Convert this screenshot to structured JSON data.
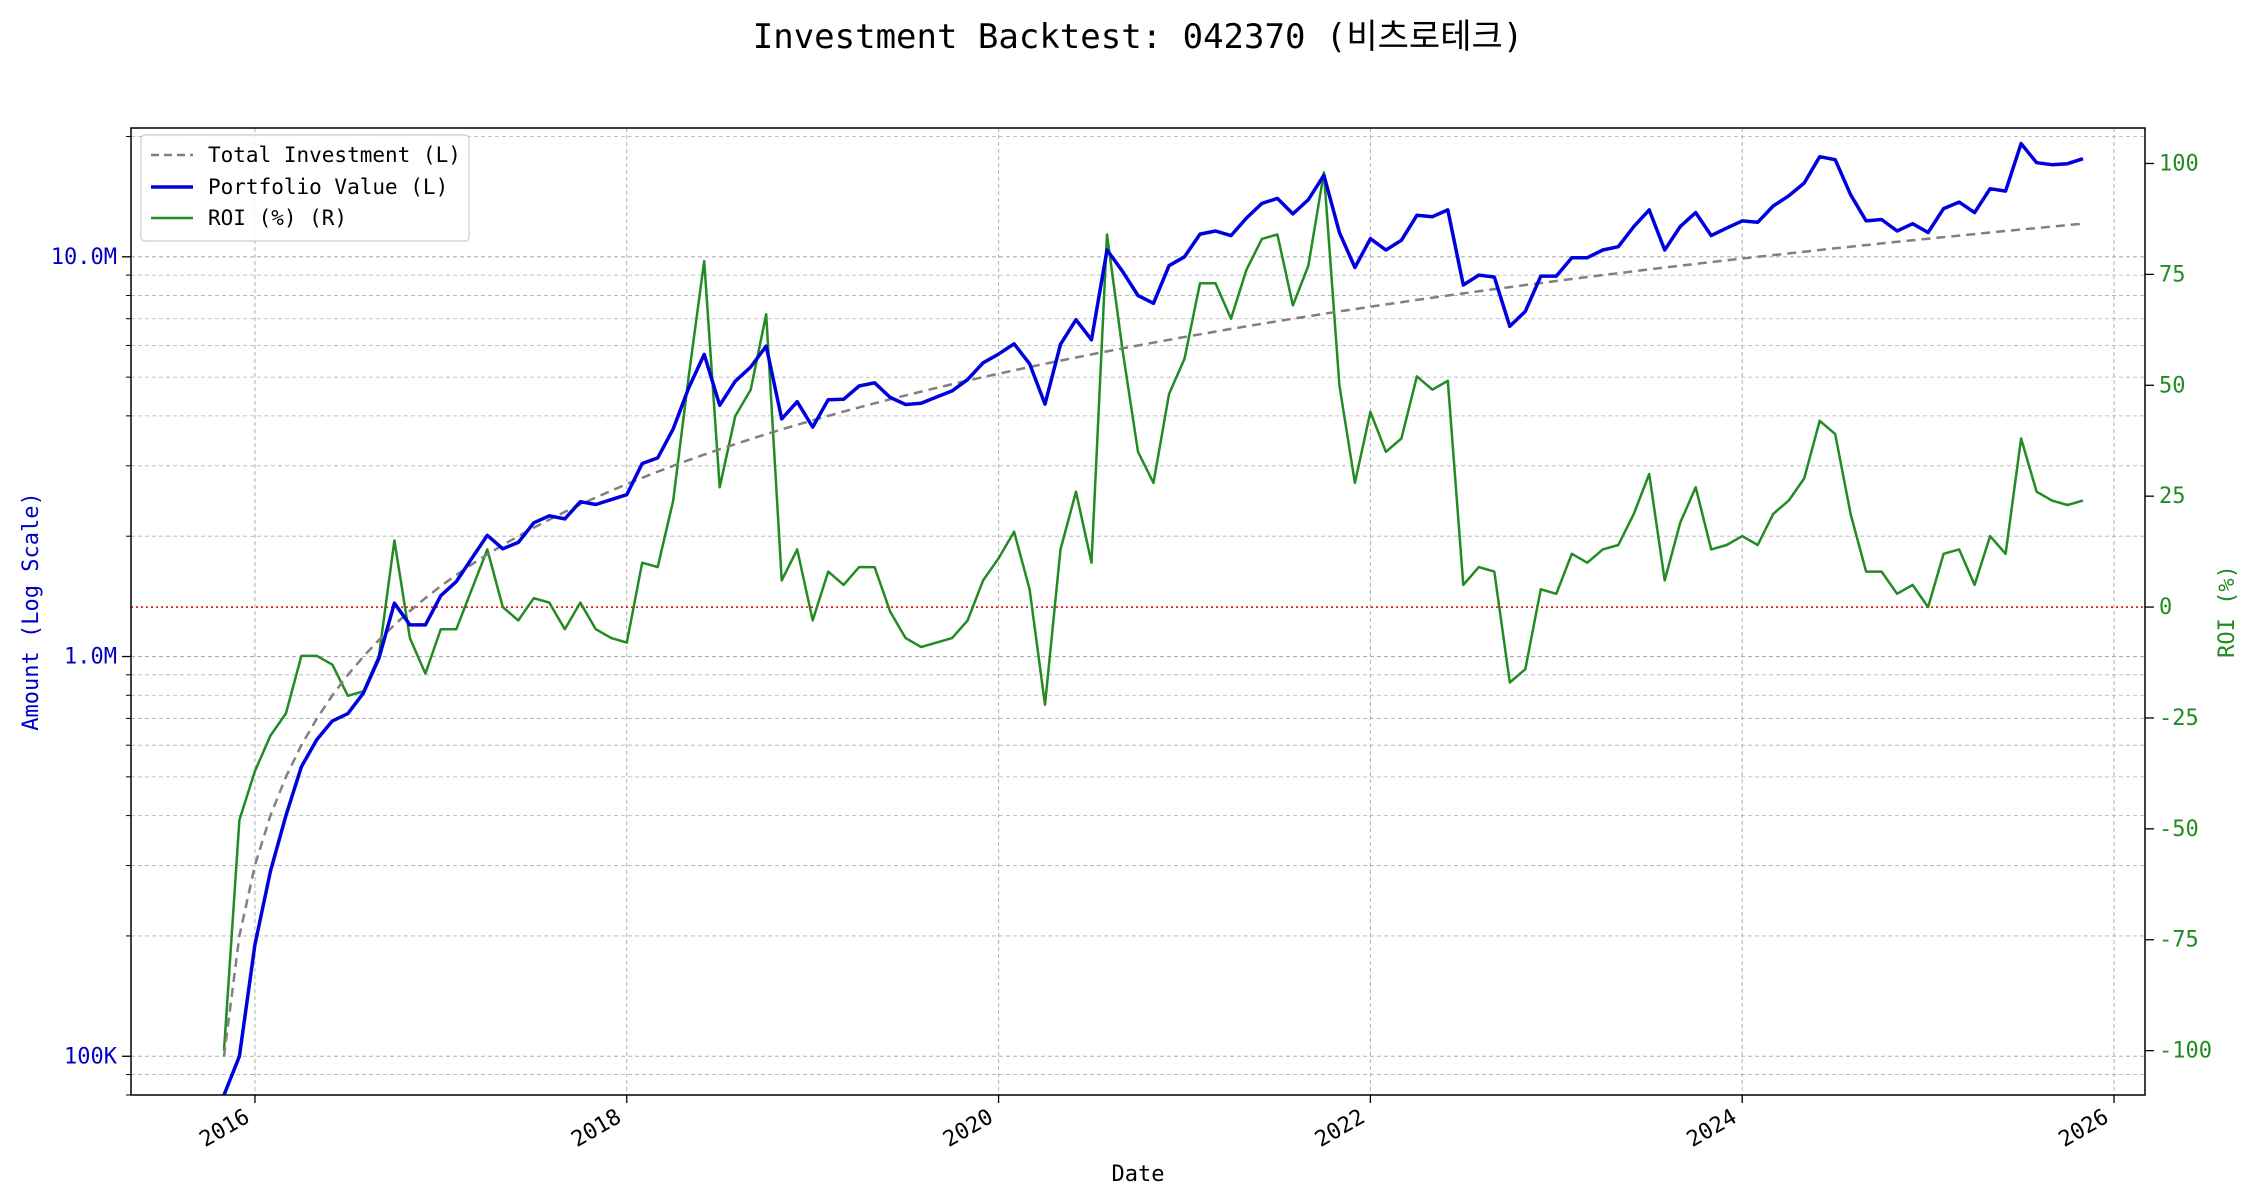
{
  "title": "Investment Backtest: 042370 (비츠로테크)",
  "colors": {
    "investment": "#808080",
    "portfolio": "#0000dd",
    "roi": "#228B22",
    "zero_line": "#dd0000",
    "grid": "#b0b0b0",
    "left_axis": "#0000cc",
    "right_axis": "#228B22"
  },
  "legend": {
    "placement": "top-left",
    "items": [
      "Total Investment (L)",
      "Portfolio Value (L)",
      "ROI (%) (R)"
    ]
  },
  "chart_data": {
    "type": "line",
    "title": "Investment Backtest: 042370 (비츠로테크)",
    "xlabel": "Date",
    "ylabel_left": "Amount (Log Scale)",
    "ylabel_right": "ROI (%)",
    "left_scale": "log",
    "left_ylim": [
      80000,
      21000000
    ],
    "right_ylim": [
      -110,
      108
    ],
    "x_range": [
      "2015-05",
      "2026-03"
    ],
    "x_tick_labels": [
      "2016",
      "2018",
      "2020",
      "2022",
      "2024",
      "2026"
    ],
    "left_tick_labels": [
      "100K",
      "1.0M",
      "10.0M"
    ],
    "right_tick_labels": [
      "-100",
      "-75",
      "-50",
      "-25",
      "0",
      "25",
      "50",
      "75",
      "100"
    ],
    "grid": true,
    "zero_line": 0,
    "x": [
      "2015-11",
      "2015-12",
      "2016-01",
      "2016-02",
      "2016-03",
      "2016-04",
      "2016-05",
      "2016-06",
      "2016-07",
      "2016-08",
      "2016-09",
      "2016-10",
      "2016-11",
      "2016-12",
      "2017-01",
      "2017-02",
      "2017-03",
      "2017-04",
      "2017-05",
      "2017-06",
      "2017-07",
      "2017-08",
      "2017-09",
      "2017-10",
      "2017-11",
      "2017-12",
      "2018-01",
      "2018-02",
      "2018-03",
      "2018-04",
      "2018-05",
      "2018-06",
      "2018-07",
      "2018-08",
      "2018-09",
      "2018-10",
      "2018-11",
      "2018-12",
      "2019-01",
      "2019-02",
      "2019-03",
      "2019-04",
      "2019-05",
      "2019-06",
      "2019-07",
      "2019-08",
      "2019-09",
      "2019-10",
      "2019-11",
      "2019-12",
      "2020-01",
      "2020-02",
      "2020-03",
      "2020-04",
      "2020-05",
      "2020-06",
      "2020-07",
      "2020-08",
      "2020-09",
      "2020-10",
      "2020-11",
      "2020-12",
      "2021-01",
      "2021-02",
      "2021-03",
      "2021-04",
      "2021-05",
      "2021-06",
      "2021-07",
      "2021-08",
      "2021-09",
      "2021-10",
      "2021-11",
      "2021-12",
      "2022-01",
      "2022-02",
      "2022-03",
      "2022-04",
      "2022-05",
      "2022-06",
      "2022-07",
      "2022-08",
      "2022-09",
      "2022-10",
      "2022-11",
      "2022-12",
      "2023-01",
      "2023-02",
      "2023-03",
      "2023-04",
      "2023-05",
      "2023-06",
      "2023-07",
      "2023-08",
      "2023-09",
      "2023-10",
      "2023-11",
      "2023-12",
      "2024-01",
      "2024-02",
      "2024-03",
      "2024-04",
      "2024-05",
      "2024-06",
      "2024-07",
      "2024-08",
      "2024-09",
      "2024-10",
      "2024-11",
      "2024-12",
      "2025-01",
      "2025-02",
      "2025-03",
      "2025-04",
      "2025-05",
      "2025-06",
      "2025-07",
      "2025-08",
      "2025-09",
      "2025-10",
      "2025-11"
    ],
    "series": [
      {
        "name": "Total Investment (L)",
        "axis": "left",
        "style": "dashed",
        "values": [
          100000,
          200000,
          300000,
          400000,
          500000,
          600000,
          700000,
          800000,
          900000,
          1000000,
          1100000,
          1200000,
          1300000,
          1400000,
          1500000,
          1600000,
          1700000,
          1800000,
          1900000,
          2000000,
          2100000,
          2200000,
          2300000,
          2400000,
          2500000,
          2600000,
          2700000,
          2800000,
          2900000,
          3000000,
          3100000,
          3200000,
          3300000,
          3400000,
          3500000,
          3600000,
          3700000,
          3800000,
          3900000,
          4000000,
          4100000,
          4200000,
          4300000,
          4400000,
          4500000,
          4600000,
          4700000,
          4800000,
          4900000,
          5000000,
          5100000,
          5200000,
          5300000,
          5400000,
          5500000,
          5600000,
          5700000,
          5800000,
          5900000,
          6000000,
          6100000,
          6200000,
          6300000,
          6400000,
          6500000,
          6600000,
          6700000,
          6800000,
          6900000,
          7000000,
          7100000,
          7200000,
          7300000,
          7400000,
          7500000,
          7600000,
          7700000,
          7800000,
          7900000,
          8000000,
          8100000,
          8200000,
          8300000,
          8400000,
          8500000,
          8600000,
          8700000,
          8800000,
          8900000,
          9000000,
          9100000,
          9200000,
          9300000,
          9400000,
          9500000,
          9600000,
          9700000,
          9800000,
          9900000,
          10000000,
          10100000,
          10200000,
          10300000,
          10400000,
          10500000,
          10600000,
          10700000,
          10800000,
          10900000,
          11000000,
          11100000,
          11200000,
          11300000,
          11400000,
          11500000,
          11600000,
          11700000,
          11800000,
          11900000,
          12000000,
          12100000
        ]
      },
      {
        "name": "Portfolio Value (L)",
        "axis": "left",
        "style": "solid",
        "values": [
          60000,
          100000,
          190000,
          290000,
          400000,
          530000,
          620000,
          690000,
          720000,
          810000,
          990000,
          1360000,
          1200000,
          1200000,
          1420000,
          1540000,
          1760000,
          2010000,
          1860000,
          1930000,
          2160000,
          2250000,
          2210000,
          2440000,
          2400000,
          2470000,
          2540000,
          3040000,
          3140000,
          3710000,
          4700000,
          5700000,
          4250000,
          4880000,
          5300000,
          5980000,
          3930000,
          4340000,
          3750000,
          4390000,
          4400000,
          4750000,
          4840000,
          4450000,
          4270000,
          4300000,
          4460000,
          4620000,
          4930000,
          5430000,
          5710000,
          6060000,
          5400000,
          4280000,
          6040000,
          6960000,
          6200000,
          10400000,
          9200000,
          8000000,
          7650000,
          9500000,
          10000000,
          11400000,
          11600000,
          11300000,
          12500000,
          13600000,
          14000000,
          12800000,
          13900000,
          16000000,
          11500000,
          9400000,
          11100000,
          10400000,
          11000000,
          12700000,
          12600000,
          13100000,
          8500000,
          9000000,
          8900000,
          6700000,
          7300000,
          8950000,
          8950000,
          9950000,
          9950000,
          10400000,
          10600000,
          11900000,
          13100000,
          10400000,
          11900000,
          12900000,
          11300000,
          11800000,
          12300000,
          12200000,
          13400000,
          14200000,
          15300000,
          17800000,
          17500000,
          14300000,
          12300000,
          12400000,
          11600000,
          12100000,
          11500000,
          13200000,
          13700000,
          12900000,
          14800000,
          14600000,
          19200000,
          17200000,
          17000000,
          17100000,
          17600000
        ]
      },
      {
        "name": "ROI (%) (R)",
        "axis": "right",
        "style": "solid",
        "values": [
          -100,
          -48,
          -37,
          -29,
          -24,
          -11,
          -11,
          -13,
          -20,
          -19,
          -11,
          15,
          -7,
          -15,
          -5,
          -5,
          4,
          13,
          0,
          -3,
          2,
          1,
          -5,
          1,
          -5,
          -7,
          -8,
          10,
          9,
          24,
          52,
          78,
          27,
          43,
          49,
          66,
          6,
          13,
          -3,
          8,
          5,
          9,
          9,
          -1,
          -7,
          -9,
          -8,
          -7,
          -3,
          6,
          11,
          17,
          4,
          -22,
          13,
          26,
          10,
          84,
          58,
          35,
          28,
          48,
          56,
          73,
          73,
          65,
          76,
          83,
          84,
          68,
          77,
          98,
          50,
          28,
          44,
          35,
          38,
          52,
          49,
          51,
          5,
          9,
          8,
          -17,
          -14,
          4,
          3,
          12,
          10,
          13,
          14,
          21,
          30,
          6,
          19,
          27,
          13,
          14,
          16,
          14,
          21,
          24,
          29,
          42,
          39,
          21,
          8,
          8,
          3,
          5,
          0,
          12,
          13,
          5,
          16,
          12,
          38,
          26,
          24,
          23,
          24
        ]
      }
    ]
  }
}
